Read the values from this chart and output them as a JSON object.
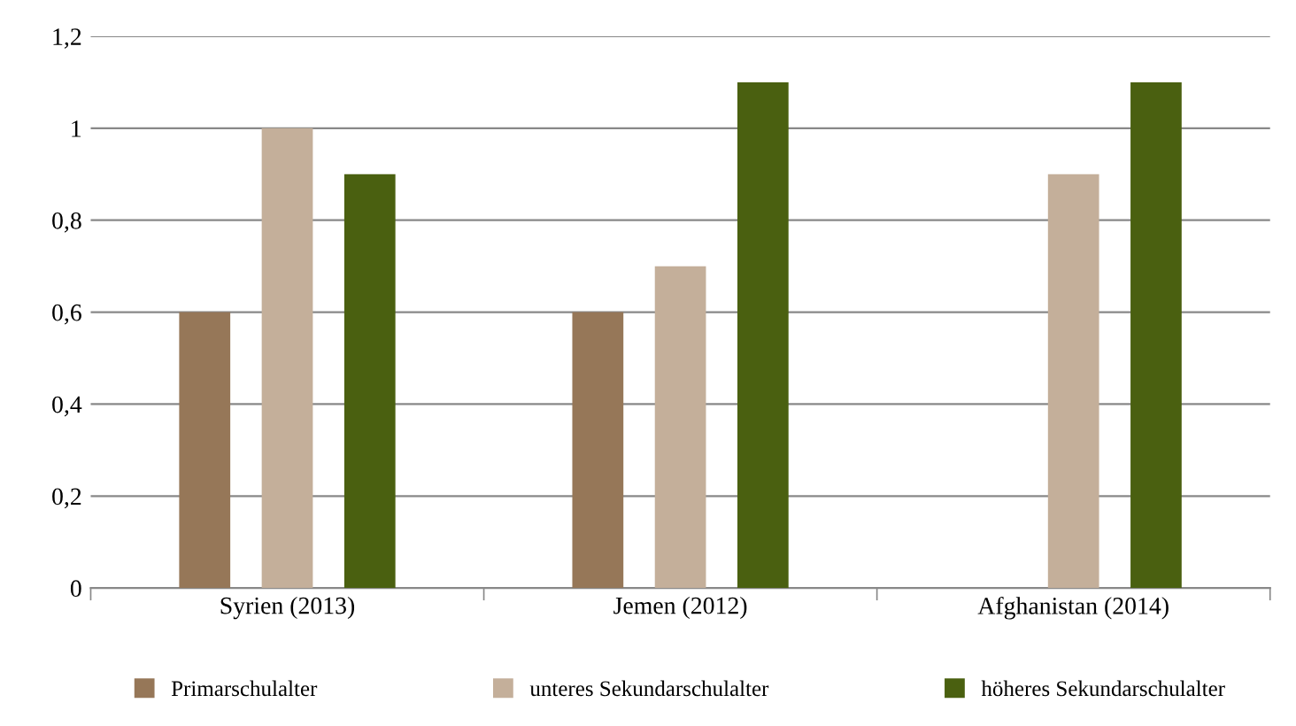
{
  "chart_data": {
    "type": "bar",
    "categories": [
      "Syrien (2013)",
      "Jemen (2012)",
      "Afghanistan (2014)"
    ],
    "series": [
      {
        "name": "Primarschulalter",
        "color": "#967758",
        "values": [
          0.6,
          0.6,
          null
        ]
      },
      {
        "name": "unteres Sekundarschulalter",
        "color": "#c4af9a",
        "values": [
          1.0,
          0.7,
          0.9
        ]
      },
      {
        "name": "höheres Sekundarschulalter",
        "color": "#4a6010",
        "values": [
          0.9,
          1.1,
          1.1
        ]
      }
    ],
    "ylim": [
      0,
      1.2
    ],
    "yticks": [
      0,
      {
        "value": 0.2,
        "label": "0,2"
      },
      {
        "value": 0.4,
        "label": "0,4"
      },
      {
        "value": 0.6,
        "label": "0,6"
      },
      {
        "value": 0.8,
        "label": "0,8"
      },
      1,
      {
        "value": 1.2,
        "label": "1,2"
      }
    ],
    "grid": "y",
    "legend": "bottom"
  }
}
